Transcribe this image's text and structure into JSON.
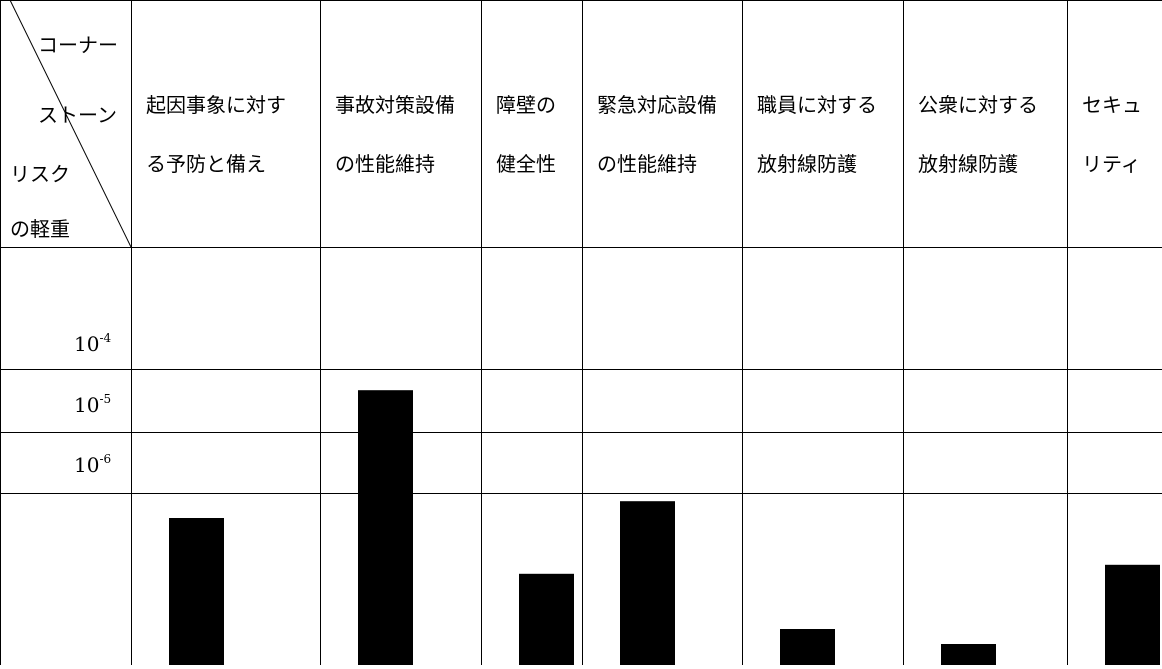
{
  "corner": {
    "top_right": "コーナー",
    "top_right_2": "ストーン",
    "bottom_left": "リスク",
    "bottom_left_2": "の軽重"
  },
  "y_ticks": [
    {
      "base": "10",
      "exp": "-4"
    },
    {
      "base": "10",
      "exp": "-5"
    },
    {
      "base": "10",
      "exp": "-6"
    }
  ],
  "chart_data": {
    "type": "bar",
    "categories": [
      [
        "起因事象に対す",
        "る予防と備え"
      ],
      [
        "事故対策設備",
        "の性能維持"
      ],
      [
        "障壁の",
        "健全性"
      ],
      [
        "緊急対応設備",
        "の性能維持"
      ],
      [
        "職員に対する",
        "放射線防護"
      ],
      [
        "公衆に対する",
        "放射線防護"
      ],
      [
        "セキュ",
        "リティ"
      ]
    ],
    "scale_note": "values in row-units measured upward from the bottom edge (1 unit = one 10^n row)",
    "values": [
      2.45,
      4.58,
      1.52,
      2.73,
      0.6,
      0.35,
      1.67
    ],
    "bar_color": "#000000",
    "grid": true
  }
}
